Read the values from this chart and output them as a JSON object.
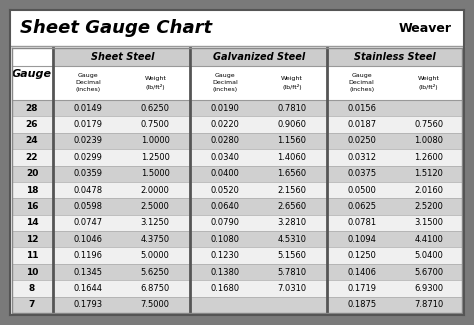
{
  "title": "Sheet Gauge Chart",
  "bg_outer": "#7a7a7a",
  "bg_white": "#ffffff",
  "bg_light_gray": "#d8d8d8",
  "bg_dark_gray": "#bbbbbb",
  "row_odd": "#d0d0d0",
  "row_even": "#f0f0f0",
  "row_header": "Gauge",
  "gauges": [
    28,
    26,
    24,
    22,
    20,
    18,
    16,
    14,
    12,
    11,
    10,
    8,
    7
  ],
  "sheet_steel": [
    [
      "0.0149",
      "0.6250"
    ],
    [
      "0.0179",
      "0.7500"
    ],
    [
      "0.0239",
      "1.0000"
    ],
    [
      "0.0299",
      "1.2500"
    ],
    [
      "0.0359",
      "1.5000"
    ],
    [
      "0.0478",
      "2.0000"
    ],
    [
      "0.0598",
      "2.5000"
    ],
    [
      "0.0747",
      "3.1250"
    ],
    [
      "0.1046",
      "4.3750"
    ],
    [
      "0.1196",
      "5.0000"
    ],
    [
      "0.1345",
      "5.6250"
    ],
    [
      "0.1644",
      "6.8750"
    ],
    [
      "0.1793",
      "7.5000"
    ]
  ],
  "galvanized_steel": [
    [
      "0.0190",
      "0.7810"
    ],
    [
      "0.0220",
      "0.9060"
    ],
    [
      "0.0280",
      "1.1560"
    ],
    [
      "0.0340",
      "1.4060"
    ],
    [
      "0.0400",
      "1.6560"
    ],
    [
      "0.0520",
      "2.1560"
    ],
    [
      "0.0640",
      "2.6560"
    ],
    [
      "0.0790",
      "3.2810"
    ],
    [
      "0.1080",
      "4.5310"
    ],
    [
      "0.1230",
      "5.1560"
    ],
    [
      "0.1380",
      "5.7810"
    ],
    [
      "0.1680",
      "7.0310"
    ],
    [
      "",
      ""
    ]
  ],
  "stainless_steel": [
    [
      "0.0156",
      ""
    ],
    [
      "0.0187",
      "0.7560"
    ],
    [
      "0.0250",
      "1.0080"
    ],
    [
      "0.0312",
      "1.2600"
    ],
    [
      "0.0375",
      "1.5120"
    ],
    [
      "0.0500",
      "2.0160"
    ],
    [
      "0.0625",
      "2.5200"
    ],
    [
      "0.0781",
      "3.1500"
    ],
    [
      "0.1094",
      "4.4100"
    ],
    [
      "0.1250",
      "5.0400"
    ],
    [
      "0.1406",
      "5.6700"
    ],
    [
      "0.1719",
      "6.9300"
    ],
    [
      "0.1875",
      "7.8710"
    ]
  ]
}
